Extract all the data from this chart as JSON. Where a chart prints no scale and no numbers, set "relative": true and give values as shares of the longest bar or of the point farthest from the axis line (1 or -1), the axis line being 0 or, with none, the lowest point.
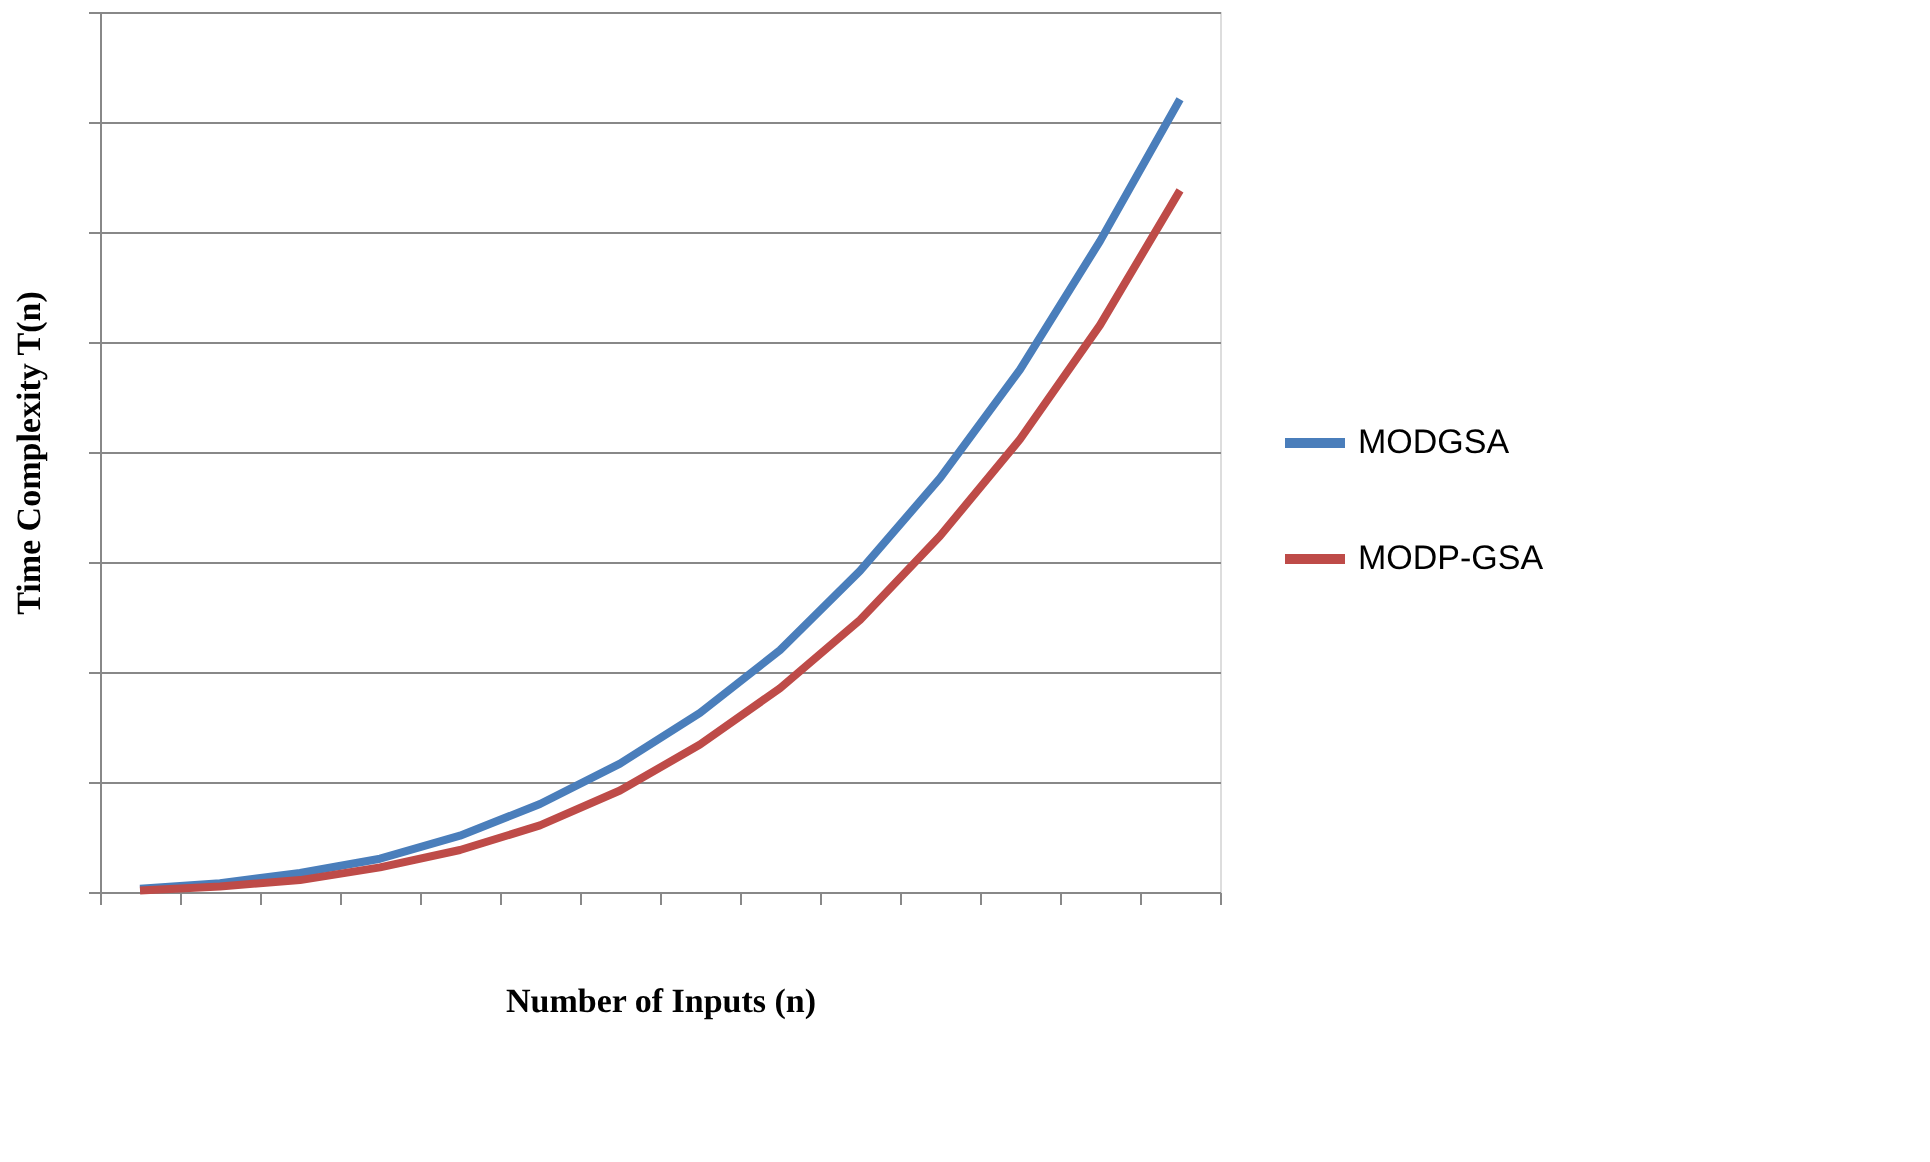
{
  "chart_data": {
    "type": "line",
    "relative": true,
    "xlabel": "Number of Inputs (n)",
    "ylabel": "Time Complexity  T(n)",
    "categories": [
      null,
      null,
      null,
      null,
      null,
      null,
      null,
      null,
      null,
      null,
      null,
      null,
      null,
      null
    ],
    "series": [
      {
        "name": "MODGSA",
        "color": "#4a7ebb",
        "values": [
          0.004,
          0.011,
          0.024,
          0.042,
          0.071,
          0.111,
          0.162,
          0.226,
          0.305,
          0.405,
          0.522,
          0.659,
          0.821,
          1
        ]
      },
      {
        "name": "MODP-GSA",
        "color": "#be4b48",
        "values": [
          0.002,
          0.007,
          0.015,
          0.031,
          0.053,
          0.084,
          0.128,
          0.186,
          0.257,
          0.343,
          0.449,
          0.571,
          0.715,
          0.885
        ]
      }
    ],
    "grid": "y",
    "legend": "right",
    "marker": "none",
    "line_style": "solid"
  }
}
